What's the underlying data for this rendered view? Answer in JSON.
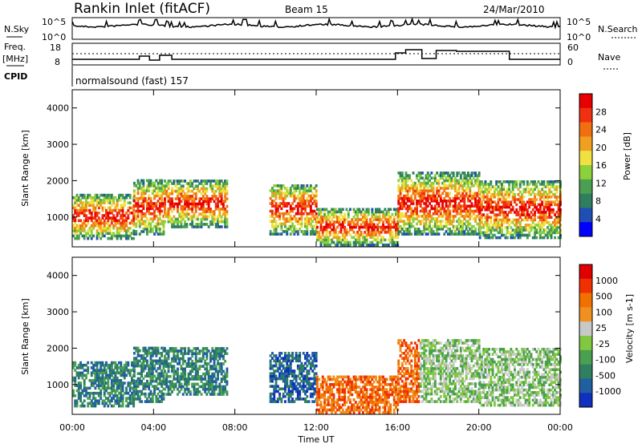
{
  "header": {
    "station": "Rankin Inlet (fitACF)",
    "beam": "Beam 15",
    "date": "24/Mar/2010"
  },
  "strip_panels": {
    "nsky": {
      "left_label": "N.Sky",
      "right_label": "N.Search",
      "left_ticks": [
        "10^5",
        "10^0"
      ],
      "right_ticks": [
        "10^5",
        "10^0"
      ]
    },
    "freq": {
      "left_label_line1": "Freq.",
      "left_label_line2": "[MHz]",
      "right_label": "Nave",
      "left_ticks": [
        "18",
        "8"
      ],
      "right_ticks": [
        "60",
        "0"
      ]
    },
    "cpid": {
      "left_label": "CPID",
      "program": "normalsound (fast) 157"
    }
  },
  "chart_data": [
    {
      "type": "heatmap",
      "name": "power",
      "ylabel": "Slant Range [km]",
      "yticks": [
        "1000",
        "2000",
        "3000",
        "4000"
      ],
      "ylim": [
        180,
        4500
      ],
      "xlim_hours": [
        0,
        24
      ],
      "colorbar": {
        "label": "Power [dB]",
        "ticks": [
          "4",
          "8",
          "12",
          "16",
          "20",
          "24",
          "28"
        ],
        "colors": [
          "#0000ff",
          "#1f4fb4",
          "#2f7f5f",
          "#4aa050",
          "#8cd03c",
          "#f0e040",
          "#f0a020",
          "#f07010",
          "#f03010",
          "#e80000"
        ]
      }
    },
    {
      "type": "heatmap",
      "name": "velocity",
      "ylabel": "Slant Range [km]",
      "yticks": [
        "1000",
        "2000",
        "3000",
        "4000"
      ],
      "ylim": [
        180,
        4500
      ],
      "xlim_hours": [
        0,
        24
      ],
      "colorbar": {
        "label": "Velocity [m s-1]",
        "ticks": [
          "1000",
          "500",
          "100",
          "25",
          "-25",
          "-100",
          "-500",
          "-1000"
        ],
        "colors": [
          "#1030c0",
          "#2060a0",
          "#2f8060",
          "#4aa050",
          "#80c840",
          "#c8c8c8",
          "#f09020",
          "#f07000",
          "#f03000",
          "#e00000"
        ]
      }
    }
  ],
  "xaxis": {
    "ticks": [
      "00:00",
      "04:00",
      "08:00",
      "12:00",
      "16:00",
      "20:00",
      "00:00"
    ],
    "label": "Time UT"
  },
  "colors": {
    "axis": "#000000",
    "background": "#ffffff"
  }
}
